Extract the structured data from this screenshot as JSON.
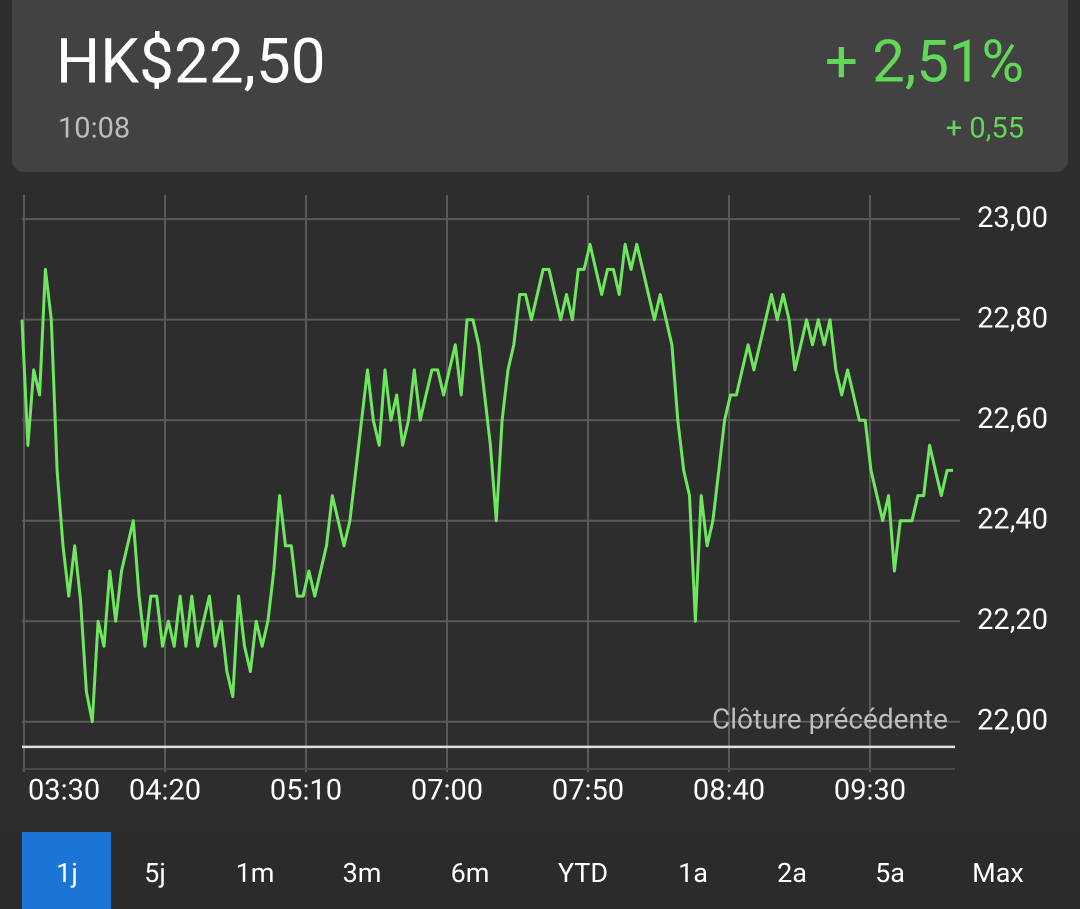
{
  "header": {
    "price": "HK$22,50",
    "time": "10:08",
    "change_percent": "+ 2,51%",
    "change": "+ 0,55"
  },
  "chart_data": {
    "type": "line",
    "color": "#6ee65e",
    "values": [
      22.8,
      22.55,
      22.7,
      22.65,
      22.9,
      22.8,
      22.5,
      22.35,
      22.25,
      22.35,
      22.24,
      22.06,
      22.0,
      22.2,
      22.15,
      22.3,
      22.2,
      22.3,
      22.35,
      22.4,
      22.25,
      22.15,
      22.25,
      22.25,
      22.15,
      22.2,
      22.15,
      22.25,
      22.15,
      22.25,
      22.15,
      22.2,
      22.25,
      22.15,
      22.2,
      22.1,
      22.05,
      22.25,
      22.15,
      22.1,
      22.2,
      22.15,
      22.2,
      22.3,
      22.45,
      22.35,
      22.35,
      22.25,
      22.25,
      22.3,
      22.25,
      22.3,
      22.35,
      22.45,
      22.4,
      22.35,
      22.4,
      22.5,
      22.6,
      22.7,
      22.6,
      22.55,
      22.7,
      22.6,
      22.65,
      22.55,
      22.6,
      22.7,
      22.6,
      22.65,
      22.7,
      22.7,
      22.65,
      22.7,
      22.75,
      22.65,
      22.8,
      22.8,
      22.75,
      22.65,
      22.55,
      22.4,
      22.6,
      22.7,
      22.75,
      22.85,
      22.85,
      22.8,
      22.85,
      22.9,
      22.9,
      22.85,
      22.8,
      22.85,
      22.8,
      22.9,
      22.9,
      22.95,
      22.9,
      22.85,
      22.9,
      22.9,
      22.85,
      22.95,
      22.9,
      22.95,
      22.9,
      22.85,
      22.8,
      22.85,
      22.8,
      22.75,
      22.6,
      22.5,
      22.45,
      22.2,
      22.45,
      22.35,
      22.4,
      22.5,
      22.6,
      22.65,
      22.65,
      22.7,
      22.75,
      22.7,
      22.75,
      22.8,
      22.85,
      22.8,
      22.85,
      22.8,
      22.7,
      22.75,
      22.8,
      22.75,
      22.8,
      22.75,
      22.8,
      22.7,
      22.65,
      22.7,
      22.65,
      22.6,
      22.6,
      22.5,
      22.45,
      22.4,
      22.45,
      22.3,
      22.4,
      22.4,
      22.4,
      22.45,
      22.45,
      22.55,
      22.5,
      22.45,
      22.5,
      22.5
    ],
    "ylim": [
      21.9,
      23.05
    ],
    "yticks": [
      {
        "value": 22,
        "label": "22,00"
      },
      {
        "value": 22.2,
        "label": "22,20"
      },
      {
        "value": 22.4,
        "label": "22,40"
      },
      {
        "value": 22.6,
        "label": "22,60"
      },
      {
        "value": 22.8,
        "label": "22,80"
      },
      {
        "value": 23,
        "label": "23,00"
      }
    ],
    "xticks": [
      "03:30",
      "04:20",
      "05:10",
      "07:00",
      "07:50",
      "08:40",
      "09:30"
    ],
    "reference_line": {
      "label": "Clôture précédente",
      "value": 21.95,
      "color": "#e0e0e0"
    },
    "grid": true
  },
  "tabs": [
    "1j",
    "5j",
    "1m",
    "3m",
    "6m",
    "YTD",
    "1a",
    "2a",
    "5a",
    "Max"
  ],
  "selected_tab": 0
}
